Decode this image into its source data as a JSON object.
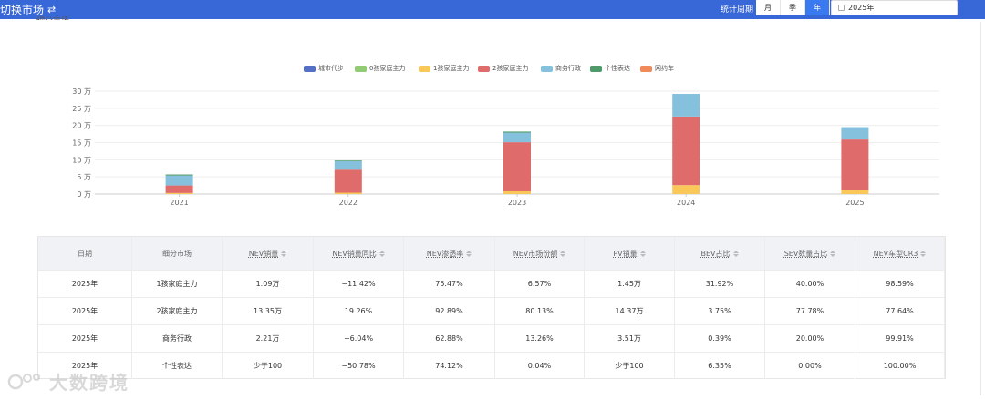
{
  "header": {
    "title": "切换市场",
    "swap_icon": "⇄",
    "period_label": "统计周期",
    "period_options": [
      "月",
      "季",
      "年"
    ],
    "period_active": "年",
    "date_value": "2025年",
    "cut_label": "细分市场"
  },
  "colors": {
    "header_bg": "#3868d8",
    "城市代步": "#5470c6",
    "0孩家庭主力": "#91cc75",
    "1孩家庭主力": "#fac858",
    "2孩家庭主力": "#e06b6b",
    "商务行政": "#85c1dd",
    "个性表达": "#4e9a6a",
    "网约车": "#f08a5a"
  },
  "chart_data": {
    "type": "bar",
    "stacked": true,
    "categories": [
      "2021",
      "2022",
      "2023",
      "2024",
      "2025"
    ],
    "y_tick_labels": [
      "0 万",
      "5 万",
      "10 万",
      "15 万",
      "20 万",
      "25 万",
      "30 万"
    ],
    "ylim": [
      0,
      30
    ],
    "y_unit": "万",
    "grid": true,
    "legend_position": "top-center",
    "series": [
      {
        "name": "城市代步",
        "values": [
          0,
          0,
          0,
          0,
          0
        ]
      },
      {
        "name": "0孩家庭主力",
        "values": [
          0,
          0,
          0,
          0,
          0
        ]
      },
      {
        "name": "1孩家庭主力",
        "values": [
          0.3,
          0.4,
          0.8,
          2.6,
          1.1
        ]
      },
      {
        "name": "2孩家庭主力",
        "values": [
          2.2,
          6.7,
          14.3,
          20.0,
          14.8
        ]
      },
      {
        "name": "商务行政",
        "values": [
          2.9,
          2.5,
          2.8,
          6.6,
          3.6
        ]
      },
      {
        "name": "个性表达",
        "values": [
          0.3,
          0.2,
          0.3,
          0,
          0
        ]
      },
      {
        "name": "网约车",
        "values": [
          0,
          0,
          0,
          0,
          0
        ]
      }
    ]
  },
  "table": {
    "columns": [
      {
        "label": "日期",
        "sortable": false
      },
      {
        "label": "细分市场",
        "sortable": false
      },
      {
        "label": "NEV销量",
        "sortable": true
      },
      {
        "label": "NEV销量同比",
        "sortable": true
      },
      {
        "label": "NEV渗透率",
        "sortable": true
      },
      {
        "label": "NEV市场份额",
        "sortable": true
      },
      {
        "label": "PV销量",
        "sortable": true
      },
      {
        "label": "BEV占比",
        "sortable": true
      },
      {
        "label": "SEV数量占比",
        "sortable": true
      },
      {
        "label": "NEV车型CR3",
        "sortable": true
      }
    ],
    "rows": [
      [
        "2025年",
        "1孩家庭主力",
        "1.09万",
        "−11.42%",
        "75.47%",
        "6.57%",
        "1.45万",
        "31.92%",
        "40.00%",
        "98.59%"
      ],
      [
        "2025年",
        "2孩家庭主力",
        "13.35万",
        "19.26%",
        "92.89%",
        "80.13%",
        "14.37万",
        "3.75%",
        "77.78%",
        "77.64%"
      ],
      [
        "2025年",
        "商务行政",
        "2.21万",
        "−6.04%",
        "62.88%",
        "13.26%",
        "3.51万",
        "0.39%",
        "20.00%",
        "99.91%"
      ],
      [
        "2025年",
        "个性表达",
        "少于100",
        "−50.78%",
        "74.12%",
        "0.04%",
        "少于100",
        "6.35%",
        "0.00%",
        "100.00%"
      ]
    ]
  },
  "watermark": {
    "text": "大数跨境"
  }
}
